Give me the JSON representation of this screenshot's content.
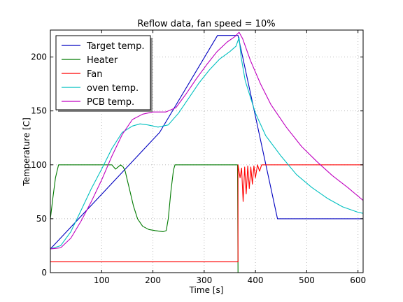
{
  "chart_data": {
    "type": "line",
    "title": "Reflow data, fan speed = 10%",
    "xlabel": "Time [s]",
    "ylabel": "Temperature [C]",
    "xlim": [
      0,
      610
    ],
    "ylim": [
      0,
      225
    ],
    "xticks": [
      100,
      200,
      300,
      400,
      500,
      600
    ],
    "yticks": [
      0,
      50,
      100,
      150,
      200
    ],
    "grid": true,
    "legend": "top-left",
    "series": [
      {
        "name": "Target temp.",
        "color": "#0000c0",
        "points": [
          [
            0,
            22
          ],
          [
            213,
            130
          ],
          [
            326,
            220
          ],
          [
            366,
            220
          ],
          [
            443,
            50
          ],
          [
            610,
            50
          ]
        ]
      },
      {
        "name": "Heater",
        "color": "#007a00",
        "points": [
          [
            0,
            50
          ],
          [
            5,
            70
          ],
          [
            10,
            88
          ],
          [
            16,
            100
          ],
          [
            120,
            100
          ],
          [
            127,
            96
          ],
          [
            132,
            98
          ],
          [
            137,
            100
          ],
          [
            142,
            98
          ],
          [
            146,
            94
          ],
          [
            150,
            86
          ],
          [
            155,
            76
          ],
          [
            162,
            62
          ],
          [
            170,
            50
          ],
          [
            180,
            43
          ],
          [
            192,
            40
          ],
          [
            205,
            39
          ],
          [
            220,
            38
          ],
          [
            226,
            39
          ],
          [
            230,
            50
          ],
          [
            235,
            75
          ],
          [
            240,
            95
          ],
          [
            243,
            100
          ],
          [
            365,
            100
          ],
          [
            366,
            0
          ]
        ]
      },
      {
        "name": "Fan",
        "color": "#ff0000",
        "points": [
          [
            0,
            10
          ],
          [
            366,
            10
          ],
          [
            366,
            100
          ],
          [
            370,
            88
          ],
          [
            373,
            97
          ],
          [
            376,
            66
          ],
          [
            379,
            98
          ],
          [
            382,
            73
          ],
          [
            385,
            99
          ],
          [
            388,
            78
          ],
          [
            391,
            98
          ],
          [
            394,
            82
          ],
          [
            397,
            99
          ],
          [
            400,
            88
          ],
          [
            404,
            100
          ],
          [
            408,
            94
          ],
          [
            412,
            100
          ],
          [
            610,
            100
          ]
        ]
      },
      {
        "name": "oven temp.",
        "color": "#00c0c0",
        "points": [
          [
            0,
            22
          ],
          [
            20,
            25
          ],
          [
            40,
            38
          ],
          [
            60,
            58
          ],
          [
            80,
            78
          ],
          [
            100,
            96
          ],
          [
            120,
            115
          ],
          [
            140,
            130
          ],
          [
            160,
            136
          ],
          [
            175,
            138
          ],
          [
            190,
            137
          ],
          [
            210,
            135
          ],
          [
            230,
            137
          ],
          [
            250,
            148
          ],
          [
            270,
            162
          ],
          [
            290,
            176
          ],
          [
            310,
            188
          ],
          [
            330,
            198
          ],
          [
            350,
            205
          ],
          [
            362,
            210
          ],
          [
            368,
            218
          ],
          [
            372,
            200
          ],
          [
            380,
            178
          ],
          [
            400,
            148
          ],
          [
            420,
            127
          ],
          [
            450,
            108
          ],
          [
            480,
            91
          ],
          [
            510,
            79
          ],
          [
            540,
            69
          ],
          [
            570,
            61
          ],
          [
            600,
            56
          ],
          [
            610,
            55
          ]
        ]
      },
      {
        "name": "PCB temp.",
        "color": "#c000c0",
        "points": [
          [
            0,
            22
          ],
          [
            20,
            23
          ],
          [
            40,
            32
          ],
          [
            60,
            48
          ],
          [
            80,
            66
          ],
          [
            100,
            86
          ],
          [
            120,
            108
          ],
          [
            140,
            128
          ],
          [
            160,
            142
          ],
          [
            180,
            147
          ],
          [
            200,
            149
          ],
          [
            225,
            149
          ],
          [
            245,
            153
          ],
          [
            265,
            166
          ],
          [
            285,
            180
          ],
          [
            305,
            193
          ],
          [
            325,
            205
          ],
          [
            345,
            214
          ],
          [
            360,
            219
          ],
          [
            368,
            223
          ],
          [
            375,
            217
          ],
          [
            390,
            197
          ],
          [
            410,
            175
          ],
          [
            430,
            156
          ],
          [
            460,
            135
          ],
          [
            490,
            117
          ],
          [
            520,
            103
          ],
          [
            550,
            90
          ],
          [
            580,
            79
          ],
          [
            610,
            67
          ]
        ]
      }
    ]
  }
}
